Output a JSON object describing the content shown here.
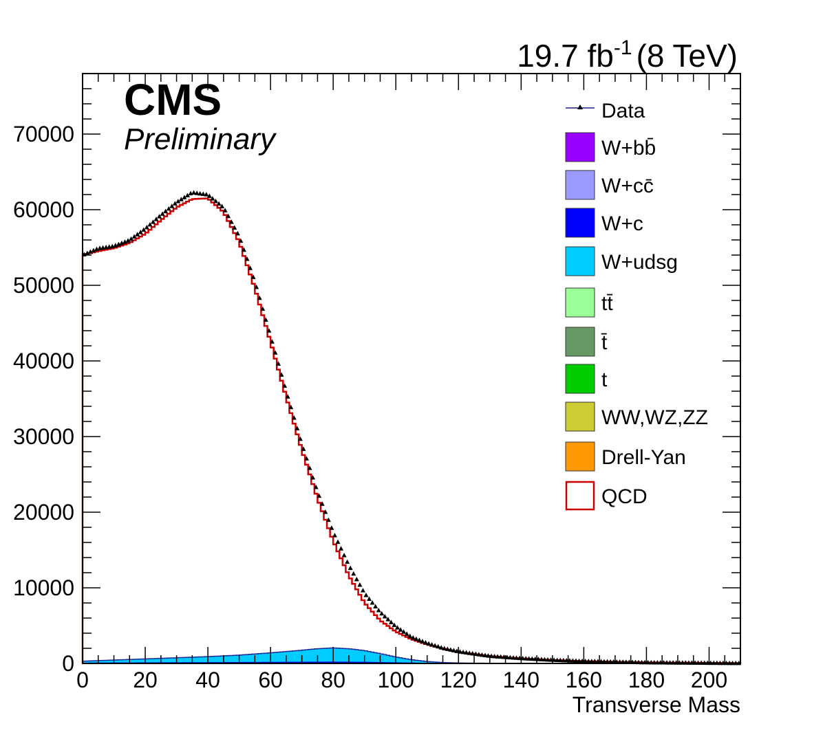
{
  "header": {
    "lumi_text": "19.7 fb",
    "lumi_sup": "-1",
    "energy_text": "(8 TeV)",
    "cms_label": "CMS",
    "prelim_label": "Preliminary"
  },
  "chart_data": {
    "type": "histogram",
    "xlabel": "Transverse Mass",
    "ylabel": "",
    "xlim": [
      0,
      210
    ],
    "ylim": [
      0,
      78000
    ],
    "x_ticks": [
      0,
      20,
      40,
      60,
      80,
      100,
      120,
      140,
      160,
      180,
      200
    ],
    "y_ticks": [
      0,
      10000,
      20000,
      30000,
      40000,
      50000,
      60000,
      70000
    ],
    "legend_position": "top-right",
    "legend": [
      {
        "label": "Data",
        "style": "marker",
        "color": "#1a1a8c"
      },
      {
        "label": "W+bb̄",
        "style": "fill",
        "color": "#9900ff"
      },
      {
        "label": "W+cc̄",
        "style": "fill",
        "color": "#9999ff"
      },
      {
        "label": "W+c",
        "style": "fill",
        "color": "#0000ff"
      },
      {
        "label": "W+udsg",
        "style": "fill",
        "color": "#00ccff"
      },
      {
        "label": "tt̄",
        "style": "fill",
        "color": "#99ff99"
      },
      {
        "label": "t̄",
        "style": "fill",
        "color": "#669966"
      },
      {
        "label": "t",
        "style": "fill",
        "color": "#00cc00"
      },
      {
        "label": "WW,WZ,ZZ",
        "style": "fill",
        "color": "#cccc33"
      },
      {
        "label": "Drell-Yan",
        "style": "fill",
        "color": "#ff9900"
      },
      {
        "label": "QCD",
        "style": "line",
        "color": "#cc0000"
      }
    ],
    "data_points": {
      "x": [
        0,
        5,
        10,
        15,
        20,
        25,
        30,
        35,
        40,
        45,
        50,
        55,
        60,
        65,
        70,
        75,
        80,
        85,
        90,
        95,
        100,
        105,
        110,
        115,
        120,
        130,
        140,
        150,
        160,
        180,
        210
      ],
      "y": [
        54000,
        54900,
        55200,
        56000,
        57500,
        59300,
        61000,
        62300,
        62000,
        60300,
        56500,
        50500,
        43300,
        36000,
        29000,
        22700,
        17400,
        13000,
        9300,
        6800,
        4900,
        3500,
        2700,
        2050,
        1600,
        1000,
        700,
        480,
        320,
        150,
        50
      ]
    },
    "qcd": {
      "x": [
        0,
        5,
        10,
        15,
        20,
        25,
        30,
        35,
        40,
        45,
        50,
        55,
        60,
        65,
        70,
        75,
        80,
        85,
        90,
        95,
        100,
        105,
        110,
        115,
        120,
        130,
        140,
        150,
        160,
        180,
        210
      ],
      "y": [
        54000,
        54500,
        54900,
        55600,
        56800,
        58600,
        60300,
        61400,
        61500,
        59700,
        55700,
        49600,
        42500,
        35200,
        28200,
        21800,
        16200,
        11600,
        8000,
        5700,
        4200,
        3200,
        2500,
        1950,
        1500,
        960,
        660,
        450,
        300,
        140,
        40
      ]
    },
    "w_udsg": {
      "x": [
        0,
        10,
        20,
        30,
        40,
        50,
        60,
        70,
        75,
        80,
        85,
        90,
        95,
        100,
        105,
        110,
        115,
        120,
        130,
        210
      ],
      "y": [
        300,
        450,
        600,
        750,
        900,
        1100,
        1400,
        1750,
        1950,
        2050,
        1950,
        1700,
        1300,
        850,
        500,
        250,
        120,
        60,
        20,
        0
      ]
    },
    "w_c": {
      "x": [
        0,
        20,
        40,
        60,
        80,
        90,
        100,
        110,
        120,
        210
      ],
      "y": [
        60,
        90,
        120,
        160,
        190,
        170,
        100,
        40,
        10,
        0
      ]
    }
  }
}
